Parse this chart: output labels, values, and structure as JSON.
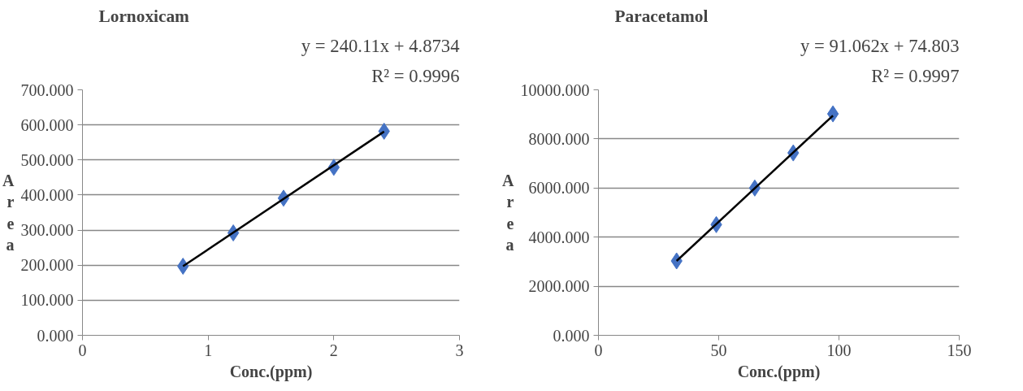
{
  "chart_data": [
    {
      "type": "scatter",
      "title": "Lornoxicam",
      "xlabel": "Conc.(ppm)",
      "ylabel": "Area",
      "annotations": [
        "y = 240.11x + 4.8734",
        "R² = 0.9996"
      ],
      "x": [
        0.8,
        1.2,
        1.6,
        2.0,
        2.4
      ],
      "marker": "diamond",
      "grid": "y",
      "xlim": [
        0,
        3
      ],
      "xticks": [
        0,
        1,
        2,
        3
      ],
      "ylim": [
        0,
        700
      ],
      "yticks": [
        {
          "value": 0,
          "label": "0.000"
        },
        {
          "value": 100,
          "label": "100.000"
        },
        {
          "value": 200,
          "label": "200.000"
        },
        {
          "value": 300,
          "label": "300.000"
        },
        {
          "value": 400,
          "label": "400.000"
        },
        {
          "value": 500,
          "label": "500.000"
        },
        {
          "value": 600,
          "label": "600.000"
        },
        {
          "value": 700,
          "label": "700.000"
        }
      ],
      "series": [
        {
          "color": "#4472c4",
          "values": [
            197,
            292,
            391,
            479,
            582
          ]
        },
        {
          "type": "line",
          "marker": "none",
          "color": "#000000",
          "x": [
            0.8,
            2.4
          ],
          "values": [
            197,
            581
          ]
        }
      ]
    },
    {
      "type": "scatter",
      "title": "Paracetamol",
      "xlabel": "Conc.(ppm)",
      "ylabel": "Area",
      "annotations": [
        "y = 91.062x + 74.803",
        "R² = 0.9997"
      ],
      "x": [
        32.5,
        49,
        65,
        81,
        97.5
      ],
      "marker": "diamond",
      "grid": "y",
      "xlim": [
        0,
        150
      ],
      "xticks": [
        0,
        50,
        100,
        150
      ],
      "ylim": [
        0,
        10000
      ],
      "yticks": [
        {
          "value": 0,
          "label": "0.000"
        },
        {
          "value": 2000,
          "label": "2000.000"
        },
        {
          "value": 4000,
          "label": "4000.000"
        },
        {
          "value": 6000,
          "label": "6000.000"
        },
        {
          "value": 8000,
          "label": "8000.000"
        },
        {
          "value": 10000,
          "label": "10000.000"
        }
      ],
      "series": [
        {
          "color": "#4472c4",
          "values": [
            3030,
            4510,
            6000,
            7430,
            9020
          ]
        },
        {
          "type": "line",
          "marker": "none",
          "color": "#000000",
          "x": [
            32.5,
            97.5
          ],
          "values": [
            3030,
            8950
          ]
        }
      ]
    }
  ]
}
